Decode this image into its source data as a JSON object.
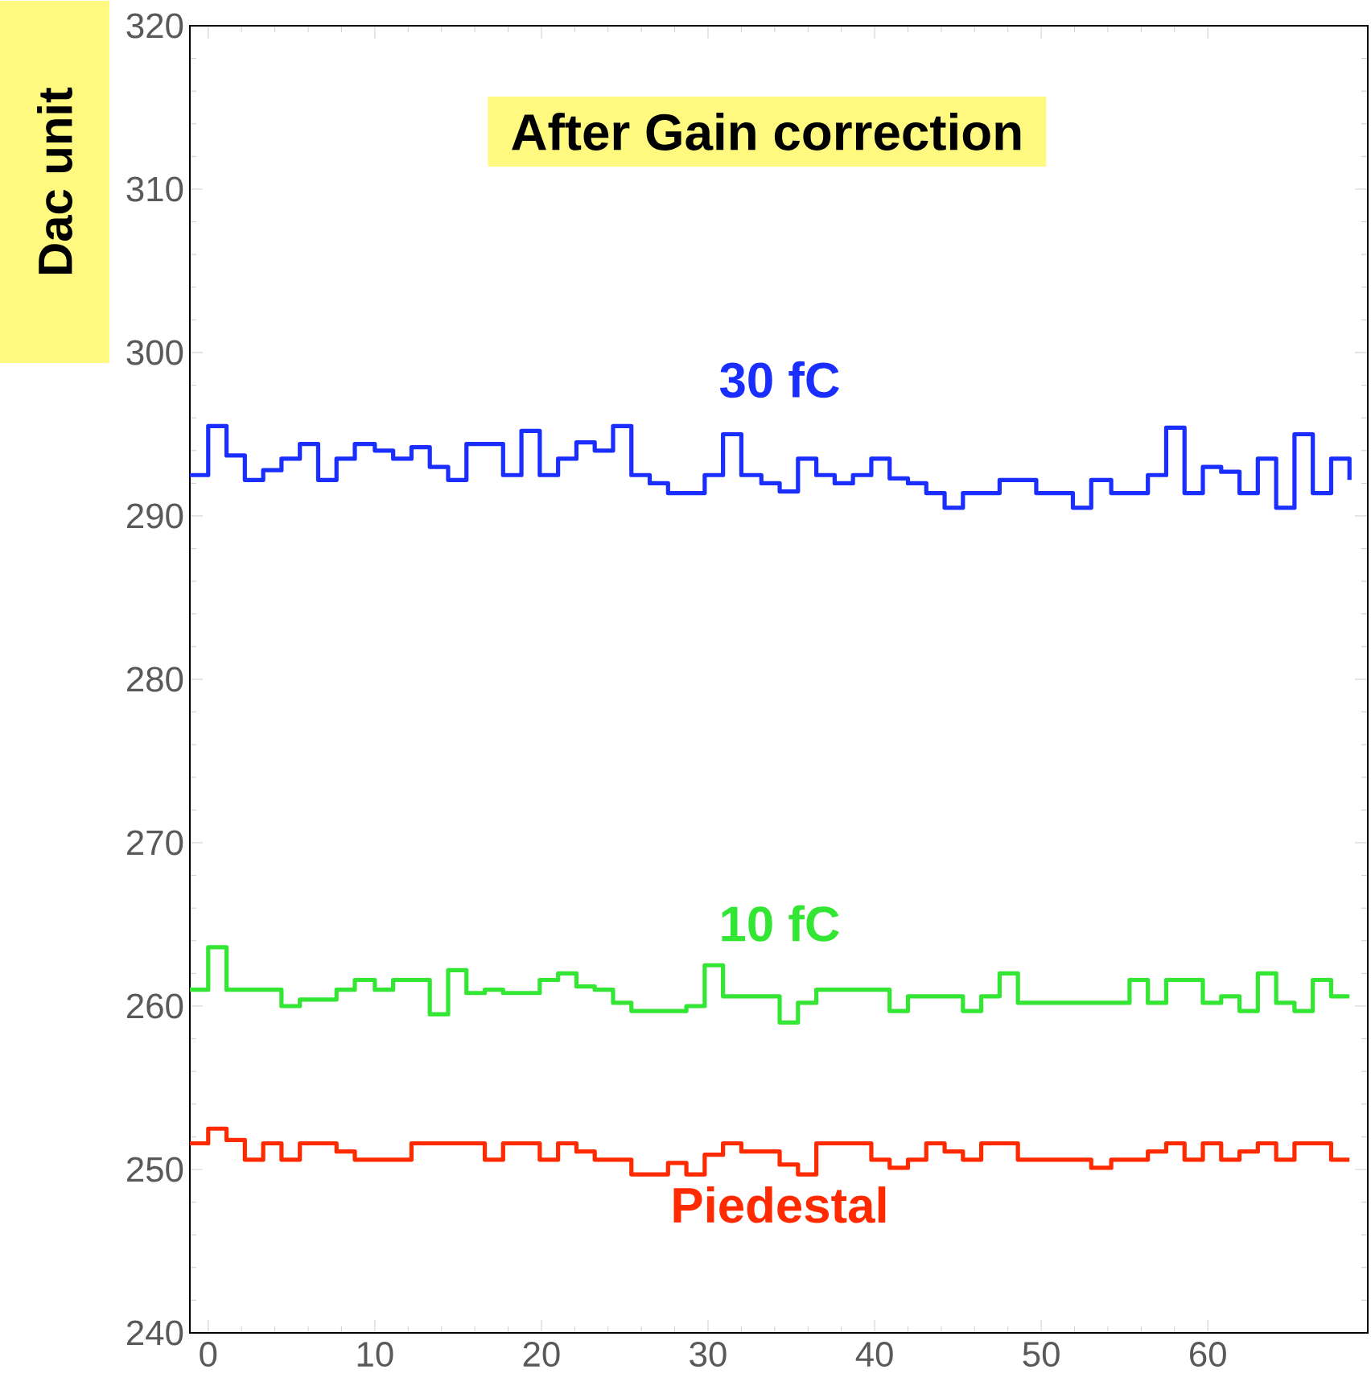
{
  "chart_data": {
    "type": "step",
    "title": "After Gain correction",
    "ylabel": "Dac unit",
    "x": [
      -1.1,
      0.0,
      1.1,
      2.2,
      3.3,
      4.4,
      5.5,
      6.6,
      7.7,
      8.8,
      10.0,
      11.1,
      12.2,
      13.3,
      14.4,
      15.5,
      16.6,
      17.7,
      18.8,
      19.9,
      21.0,
      22.1,
      23.2,
      24.3,
      25.4,
      26.5,
      27.6,
      28.7,
      29.8,
      30.9,
      32.0,
      33.2,
      34.3,
      35.4,
      36.5,
      37.6,
      38.7,
      39.8,
      40.9,
      42.0,
      43.1,
      44.2,
      45.3,
      46.4,
      47.5,
      48.6,
      49.7,
      50.8,
      51.9,
      53.0,
      54.2,
      55.3,
      56.4,
      57.5,
      58.6,
      59.7,
      60.8,
      61.9,
      63.0,
      64.1,
      65.2,
      66.3,
      67.4,
      68.5
    ],
    "xlim": [
      -1.1,
      69.6
    ],
    "ylim": [
      240,
      320
    ],
    "xticks": [
      0,
      10,
      20,
      30,
      40,
      50,
      60
    ],
    "yticks": [
      240,
      250,
      260,
      270,
      280,
      290,
      300,
      310,
      320
    ],
    "series": [
      {
        "name": "30 fC",
        "color": "#1a2eff",
        "values": [
          292.5,
          295.5,
          293.7,
          292.2,
          292.8,
          293.5,
          294.4,
          292.2,
          293.5,
          294.4,
          294.0,
          293.5,
          294.2,
          293.0,
          292.2,
          294.4,
          294.4,
          292.5,
          295.2,
          292.5,
          293.5,
          294.5,
          294.0,
          295.5,
          292.5,
          292.0,
          291.4,
          291.4,
          292.5,
          295.0,
          292.5,
          292.0,
          291.5,
          293.5,
          292.5,
          292.0,
          292.5,
          293.5,
          292.3,
          292.0,
          291.4,
          290.5,
          291.4,
          291.4,
          292.2,
          292.2,
          291.4,
          291.4,
          290.5,
          292.2,
          291.4,
          291.4,
          292.5,
          295.4,
          291.4,
          293.0,
          292.7,
          291.4,
          293.5,
          290.5,
          295.0,
          291.4,
          293.5,
          292.2
        ]
      },
      {
        "name": "10 fC",
        "color": "#33e633",
        "values": [
          261.0,
          263.6,
          261.0,
          261.0,
          261.0,
          260.0,
          260.4,
          260.4,
          261.0,
          261.6,
          261.0,
          261.6,
          261.6,
          259.5,
          262.2,
          260.8,
          261.0,
          260.8,
          260.8,
          261.6,
          262.0,
          261.2,
          261.0,
          260.2,
          259.7,
          259.7,
          259.7,
          260.0,
          262.5,
          260.6,
          260.6,
          260.6,
          259.0,
          260.2,
          261.0,
          261.0,
          261.0,
          261.0,
          259.7,
          260.6,
          260.6,
          260.6,
          259.7,
          260.6,
          262.0,
          260.2,
          260.2,
          260.2,
          260.2,
          260.2,
          260.2,
          261.6,
          260.2,
          261.6,
          261.6,
          260.2,
          260.6,
          259.7,
          262.0,
          260.2,
          259.7,
          261.6,
          260.6,
          260.6
        ]
      },
      {
        "name": "Piedestal",
        "color": "#ff2a00",
        "values": [
          251.6,
          252.5,
          251.8,
          250.6,
          251.6,
          250.6,
          251.6,
          251.6,
          251.1,
          250.6,
          250.6,
          250.6,
          251.6,
          251.6,
          251.6,
          251.6,
          250.6,
          251.6,
          251.6,
          250.6,
          251.6,
          251.1,
          250.6,
          250.6,
          249.7,
          249.7,
          250.4,
          249.7,
          250.9,
          251.6,
          251.1,
          251.1,
          250.3,
          249.7,
          251.6,
          251.6,
          251.6,
          250.6,
          250.1,
          250.6,
          251.6,
          251.1,
          250.6,
          251.6,
          251.6,
          250.6,
          250.6,
          250.6,
          250.6,
          250.1,
          250.6,
          250.6,
          251.1,
          251.6,
          250.6,
          251.6,
          250.6,
          251.1,
          251.6,
          250.6,
          251.6,
          251.6,
          250.6,
          250.6
        ]
      }
    ]
  }
}
